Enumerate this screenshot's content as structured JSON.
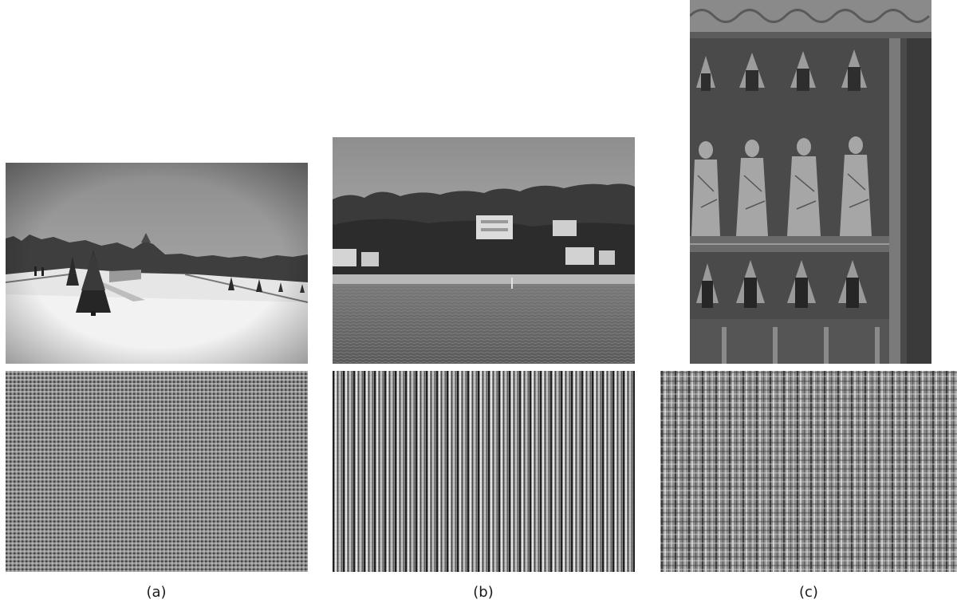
{
  "figure": {
    "panels": [
      {
        "id": "a",
        "caption": "(a)",
        "photo": "snowy-park-photo",
        "pattern": "dense-checker-grating"
      },
      {
        "id": "b",
        "caption": "(b)",
        "photo": "riverside-houses-photo",
        "pattern": "vertical-stripe-grating"
      },
      {
        "id": "c",
        "caption": "(c)",
        "photo": "gothic-carved-altar-photo",
        "pattern": "plaid-grating"
      }
    ]
  }
}
